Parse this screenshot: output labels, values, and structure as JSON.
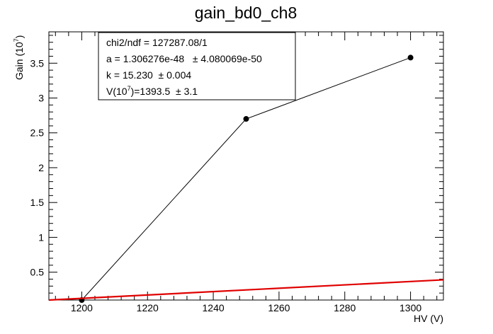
{
  "chart_data": {
    "type": "scatter",
    "title": "gain_bd0_ch8",
    "xlabel": "HV (V)",
    "ylabel_main": "Gain (10",
    "ylabel_exp": "7",
    "ylabel_close": ")",
    "xlim": [
      1190,
      1310
    ],
    "ylim": [
      0.1,
      3.95
    ],
    "x_tick_labels": [
      "1200",
      "1220",
      "1240",
      "1260",
      "1280",
      "1300"
    ],
    "y_tick_labels": [
      "0.5",
      "1",
      "1.5",
      "2",
      "2.5",
      "3",
      "3.5"
    ],
    "series": [
      {
        "style": "markers-with-line",
        "x": [
          1200,
          1250,
          1300
        ],
        "y": [
          0.1,
          2.7,
          3.58
        ]
      }
    ],
    "fit": {
      "style": "line",
      "color": "#e00000",
      "x": [
        1190,
        1310
      ],
      "y": [
        0.1,
        0.39
      ]
    },
    "stats_box": {
      "position": "top-left",
      "line1": "chi2/ndf = 127287.08/1",
      "line2": "a = 1.306276e-48   ± 4.080069e-50",
      "line3": "k = 15.230  ± 0.004",
      "line4_prefix": "V(10",
      "line4_exp": "7",
      "line4_suffix": ")=1393.5  ± 3.1"
    },
    "grid": false
  }
}
